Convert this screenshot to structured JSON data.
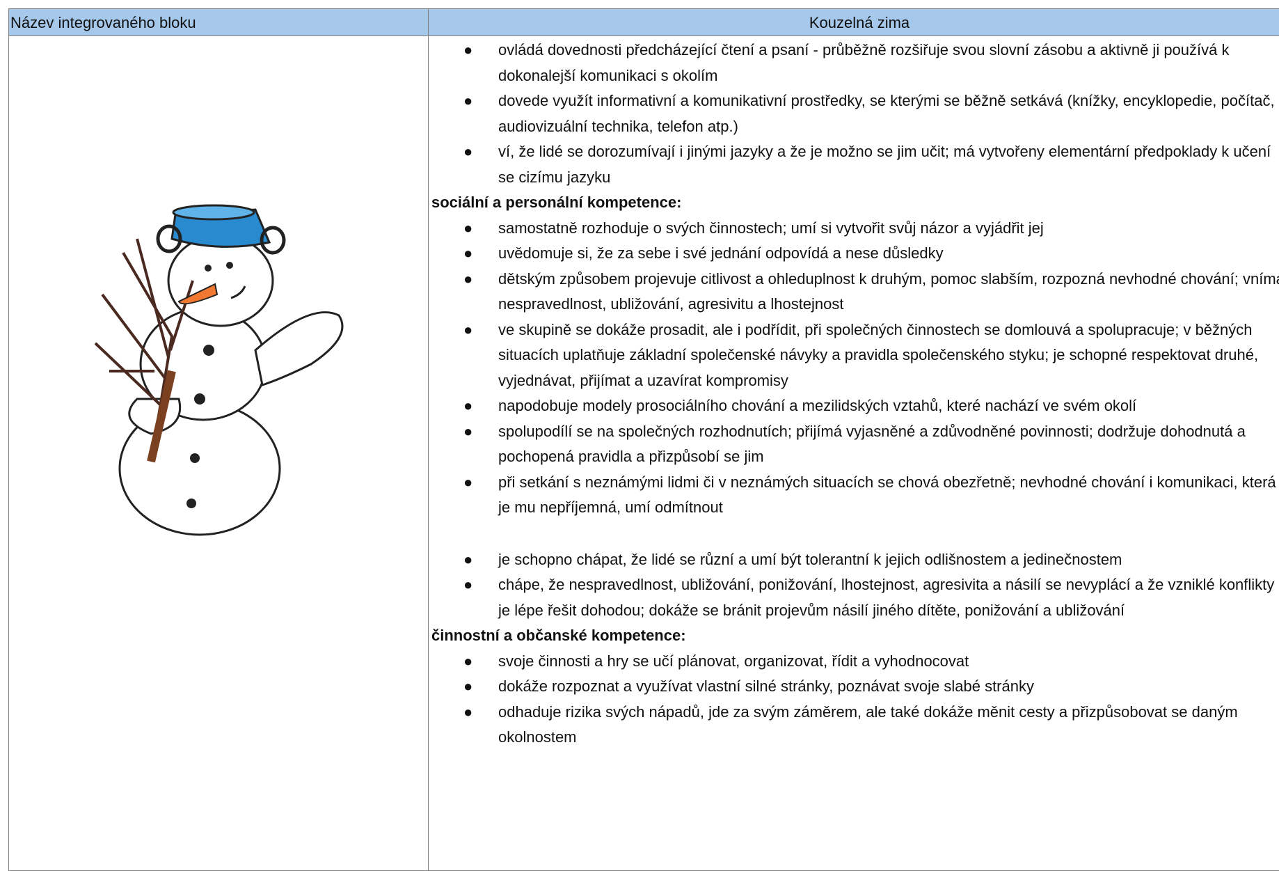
{
  "table": {
    "header": [
      "Název integrovaného bloku",
      "Kouzelná zima"
    ],
    "blocks": [
      {
        "items": [
          "ovládá dovednosti předcházející čtení a psaní - průběžně rozšiřuje svou slovní zásobu a aktivně ji používá k dokonalejší komunikaci s okolím",
          "dovede využít informativní a komunikativní prostředky, se kterými se běžně setkává (knížky, encyklopedie, počítač, audiovizuální technika, telefon atp.)",
          "ví, že lidé se dorozumívají i jinými jazyky a že je možno se jim učit; má vytvořeny elementární předpoklady k učení se cizímu jazyku"
        ]
      },
      {
        "heading": "sociální a personální kompetence:",
        "items": [
          "samostatně rozhoduje o svých činnostech; umí si vytvořit svůj názor a vyjádřit jej",
          "uvědomuje si, že za sebe i své jednání odpovídá a nese důsledky",
          "dětským způsobem projevuje citlivost a ohleduplnost k druhým, pomoc slabším, rozpozná nevhodné chování; vnímá nespravedlnost, ubližování, agresivitu a lhostejnost",
          "ve skupině se dokáže prosadit, ale i podřídit, při společných činnostech se domlouvá a spolupracuje; v běžných situacích uplatňuje základní společenské návyky a pravidla společenského styku; je schopné respektovat druhé, vyjednávat, přijímat a uzavírat kompromisy",
          "napodobuje modely prosociálního chování a mezilidských vztahů, které nachází ve svém okolí",
          "spolupodílí se na společných rozhodnutích; přijímá vyjasněné a zdůvodněné povinnosti; dodržuje dohodnutá a pochopená pravidla a přizpůsobí se jim",
          "při setkání s neznámými lidmi či v neznámých situacích se chová obezřetně; nevhodné chování i komunikaci, která je mu nepříjemná, umí odmítnout"
        ]
      },
      {
        "items": [
          "je schopno chápat, že lidé se různí a umí být tolerantní k jejich odlišnostem a jedinečnostem",
          "chápe, že nespravedlnost, ubližování, ponižování, lhostejnost, agresivita a násilí se nevyplácí a že vzniklé konflikty je lépe řešit dohodou; dokáže se bránit projevům násilí jiného dítěte, ponižování a ubližování"
        ]
      },
      {
        "heading": "činnostní a občanské kompetence:",
        "items": [
          "svoje činnosti a hry se učí plánovat, organizovat, řídit a vyhodnocovat",
          "dokáže rozpoznat a využívat vlastní silné stránky, poznávat svoje slabé stránky",
          "odhaduje rizika svých nápadů, jde za svým záměrem, ale také dokáže měnit cesty a přizpůsobovat se daným okolnostem"
        ]
      }
    ]
  }
}
